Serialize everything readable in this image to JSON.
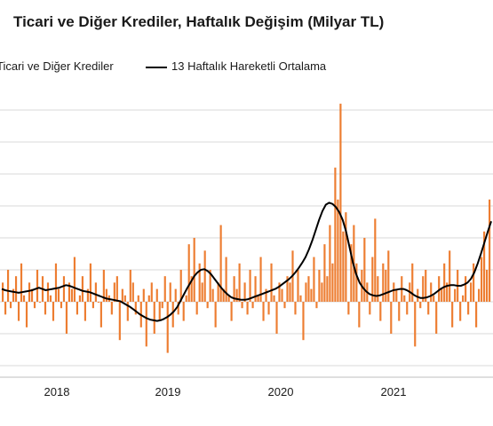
{
  "title": "Ticari ve Diğer Krediler, Haftalık Değişim (Milyar TL)",
  "legend": {
    "bars_label": "Ticari ve Diğer Krediler",
    "line_label": "13 Haftalık Hareketli Ortalama"
  },
  "colors": {
    "bars": "#ED7D31",
    "line": "#000000",
    "grid": "#d9d9d9"
  },
  "chart_data": {
    "type": "bar",
    "title": "Ticari ve Diğer Krediler, Haftalık Değişim (Milyar TL)",
    "xlabel": "",
    "ylabel": "",
    "x_ticks": [
      "2018",
      "2019",
      "2020",
      "2021"
    ],
    "grid": "horizontal",
    "legend_position": "top",
    "ylim": [
      -15,
      35
    ],
    "series": [
      {
        "name": "Ticari ve Diğer Krediler",
        "type": "bar",
        "color": "#ED7D31",
        "values": [
          3,
          -2,
          5,
          -1,
          2,
          4,
          -3,
          6,
          1,
          -4,
          3,
          2,
          -1,
          5,
          0,
          4,
          -2,
          3,
          1,
          -3,
          6,
          2,
          -1,
          4,
          -5,
          3,
          2,
          7,
          -2,
          1,
          4,
          -3,
          2,
          6,
          -1,
          3,
          0,
          -4,
          5,
          2,
          1,
          -2,
          3,
          4,
          -6,
          2,
          1,
          -3,
          5,
          3,
          -2,
          1,
          -4,
          2,
          -7,
          1,
          3,
          -5,
          2,
          -3,
          -1,
          4,
          -8,
          3,
          -4,
          2,
          -2,
          5,
          -3,
          1,
          9,
          4,
          10,
          -2,
          6,
          3,
          8,
          -1,
          5,
          2,
          -4,
          3,
          12,
          2,
          7,
          1,
          -3,
          4,
          2,
          6,
          -1,
          3,
          -2,
          5,
          -1,
          4,
          1,
          7,
          -3,
          2,
          -2,
          6,
          1,
          -5,
          3,
          2,
          -1,
          4,
          3,
          8,
          -2,
          5,
          1,
          -6,
          3,
          4,
          2,
          7,
          -1,
          5,
          3,
          9,
          4,
          12,
          6,
          21,
          16,
          31,
          11,
          14,
          -2,
          9,
          12,
          6,
          -4,
          5,
          10,
          3,
          -2,
          7,
          13,
          4,
          -3,
          6,
          5,
          8,
          -5,
          3,
          2,
          -3,
          4,
          1,
          -2,
          3,
          6,
          -7,
          2,
          -1,
          4,
          5,
          -2,
          3,
          1,
          -5,
          4,
          2,
          6,
          3,
          8,
          -4,
          2,
          5,
          -3,
          1,
          4,
          -2,
          3,
          6,
          -4,
          2,
          7,
          11,
          5,
          16
        ]
      },
      {
        "name": "13 Haftalık Hareketli Ortalama",
        "type": "line",
        "color": "#000000",
        "values": [
          2.0,
          1.8,
          1.7,
          1.6,
          1.5,
          1.4,
          1.5,
          1.6,
          1.7,
          1.8,
          2.0,
          2.2,
          2.0,
          1.8,
          1.9,
          2.0,
          2.1,
          2.2,
          2.4,
          2.6,
          2.5,
          2.3,
          2.1,
          1.9,
          1.7,
          1.6,
          1.5,
          1.3,
          1.1,
          0.9,
          0.7,
          0.5,
          0.4,
          0.3,
          0.2,
          0.1,
          -0.2,
          -0.5,
          -0.8,
          -1.2,
          -1.6,
          -2.0,
          -2.3,
          -2.6,
          -2.8,
          -2.9,
          -3.0,
          -2.9,
          -2.7,
          -2.4,
          -2.0,
          -1.5,
          -0.8,
          0.2,
          1.2,
          2.2,
          3.1,
          4.0,
          4.6,
          5.0,
          5.1,
          4.8,
          4.3,
          3.6,
          2.9,
          2.2,
          1.6,
          1.1,
          0.7,
          0.5,
          0.4,
          0.3,
          0.3,
          0.4,
          0.6,
          0.8,
          1.0,
          1.2,
          1.4,
          1.6,
          1.8,
          2.0,
          2.3,
          2.7,
          3.1,
          3.5,
          4.0,
          4.6,
          5.3,
          6.1,
          7.0,
          8.2,
          9.6,
          11.2,
          12.8,
          14.2,
          15.2,
          15.5,
          15.3,
          14.8,
          14.0,
          12.8,
          11.0,
          8.6,
          6.2,
          4.3,
          3.0,
          2.2,
          1.6,
          1.2,
          1.0,
          0.9,
          1.0,
          1.2,
          1.4,
          1.6,
          1.8,
          1.9,
          2.0,
          2.0,
          1.8,
          1.5,
          1.1,
          0.8,
          0.6,
          0.6,
          0.7,
          0.9,
          1.2,
          1.6,
          2.0,
          2.3,
          2.5,
          2.6,
          2.6,
          2.5,
          2.5,
          2.7,
          3.0,
          3.6,
          4.6,
          6.0,
          7.6,
          9.3,
          11.0,
          12.6
        ]
      }
    ]
  }
}
